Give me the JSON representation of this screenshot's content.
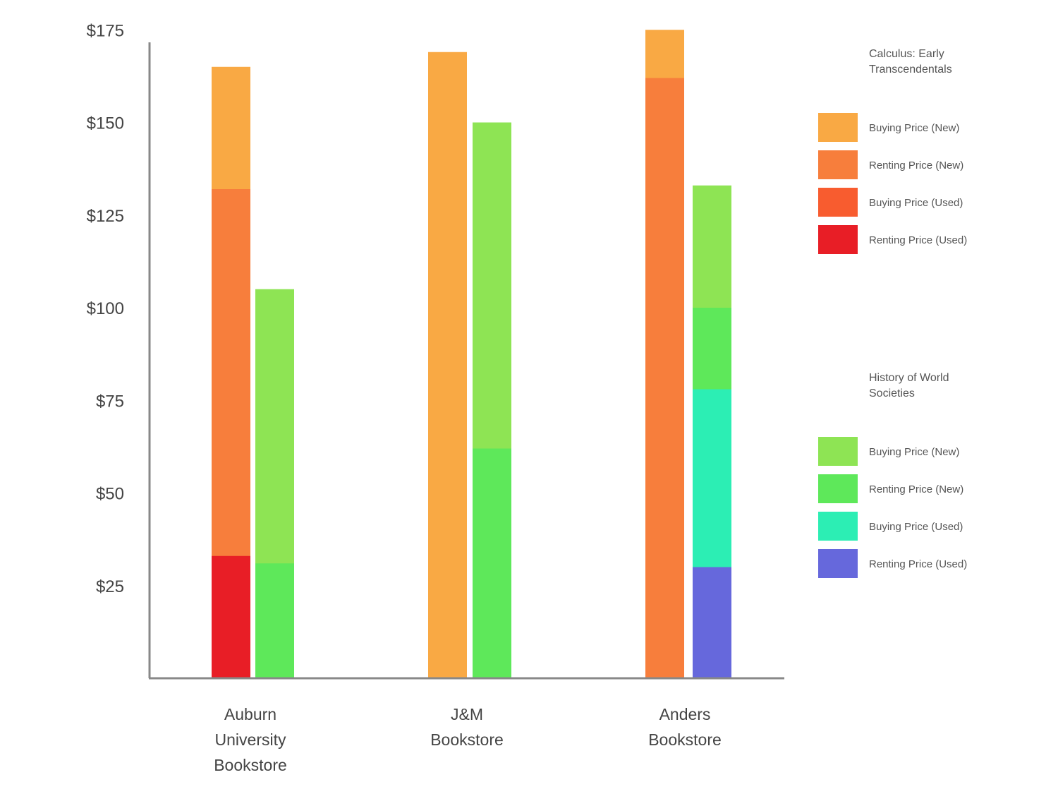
{
  "chart_data": {
    "type": "bar",
    "subtype": "overlapping-stacked",
    "xlabel": "",
    "ylabel": "",
    "ylim": [
      0,
      175
    ],
    "yticks": [
      25,
      50,
      75,
      100,
      125,
      150,
      175
    ],
    "ytick_labels": [
      "$25",
      "$50",
      "$75",
      "$100",
      "$125",
      "$150",
      "$175"
    ],
    "categories": [
      {
        "id": "auburn",
        "lines": [
          "Auburn",
          "University",
          "Bookstore"
        ]
      },
      {
        "id": "jm",
        "lines": [
          "J&M",
          "Bookstore"
        ]
      },
      {
        "id": "anders",
        "lines": [
          "Anders",
          "Bookstore"
        ]
      }
    ],
    "books": [
      {
        "id": "calculus",
        "title_lines": [
          "Calculus: Early",
          "Transcendentals"
        ],
        "series": [
          {
            "name": "Buying Price (New)",
            "color": "#f9a944",
            "values": [
              165,
              169,
              175
            ]
          },
          {
            "name": "Renting Price (New)",
            "color": "#f77e3c",
            "values": [
              132,
              null,
              162
            ]
          },
          {
            "name": "Buying Price (Used)",
            "color": "#f85c2f",
            "values": [
              null,
              null,
              null
            ]
          },
          {
            "name": "Renting Price (Used)",
            "color": "#e81e26",
            "values": [
              33,
              null,
              null
            ]
          }
        ]
      },
      {
        "id": "history",
        "title_lines": [
          "History of World",
          "Societies"
        ],
        "series": [
          {
            "name": "Buying Price (New)",
            "color": "#8ee454",
            "values": [
              105,
              150,
              133
            ]
          },
          {
            "name": "Renting Price (New)",
            "color": "#5ee85a",
            "values": [
              31,
              62,
              100
            ]
          },
          {
            "name": "Buying Price (Used)",
            "color": "#2ceeb4",
            "values": [
              null,
              null,
              78
            ]
          },
          {
            "name": "Renting Price (Used)",
            "color": "#6668dc",
            "values": [
              null,
              null,
              30
            ]
          }
        ]
      }
    ],
    "legend_location": "right"
  }
}
